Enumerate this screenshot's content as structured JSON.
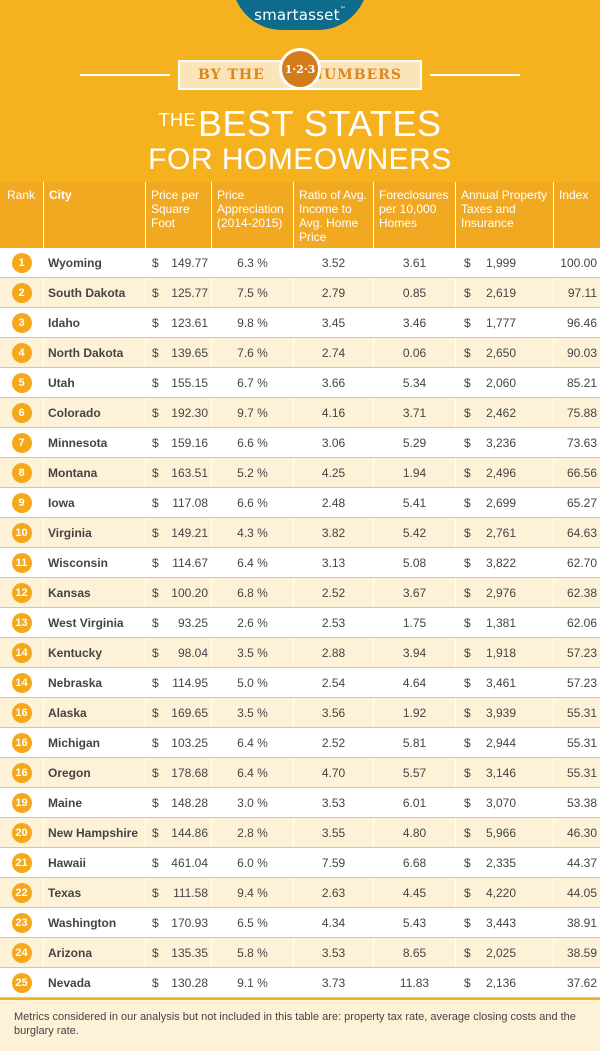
{
  "logo": {
    "name": "smartasset",
    "tm": "™"
  },
  "banner": {
    "left_word": "BY THE",
    "badge": "1·2·3",
    "right_word": "NUMBERS"
  },
  "title": {
    "prefix": "THE",
    "line1": "BEST STATES",
    "line2": "FOR HOMEOWNERS"
  },
  "colors": {
    "background": "#f5b21e",
    "header_cell": "#f2a922",
    "rank_circle": "#f5a81a",
    "logo": "#0f6b8c"
  },
  "table": {
    "headers": [
      "Rank",
      "City",
      "Price per Square Foot",
      "Price Appreciation (2014-2015)",
      "Ratio of Avg. Income to Avg. Home Price",
      "Foreclosures per 10,000 Homes",
      "Annual Property Taxes and Insurance",
      "Index"
    ],
    "rows": [
      {
        "rank": "1",
        "city": "Wyoming",
        "price": "149.77",
        "appreciation": "6.3 %",
        "ratio": "3.52",
        "foreclosures": "3.61",
        "tax": "1,999",
        "index": "100.00"
      },
      {
        "rank": "2",
        "city": "South Dakota",
        "price": "125.77",
        "appreciation": "7.5 %",
        "ratio": "2.79",
        "foreclosures": "0.85",
        "tax": "2,619",
        "index": "97.11"
      },
      {
        "rank": "3",
        "city": "Idaho",
        "price": "123.61",
        "appreciation": "9.8 %",
        "ratio": "3.45",
        "foreclosures": "3.46",
        "tax": "1,777",
        "index": "96.46"
      },
      {
        "rank": "4",
        "city": "North Dakota",
        "price": "139.65",
        "appreciation": "7.6 %",
        "ratio": "2.74",
        "foreclosures": "0.06",
        "tax": "2,650",
        "index": "90.03"
      },
      {
        "rank": "5",
        "city": "Utah",
        "price": "155.15",
        "appreciation": "6.7 %",
        "ratio": "3.66",
        "foreclosures": "5.34",
        "tax": "2,060",
        "index": "85.21"
      },
      {
        "rank": "6",
        "city": "Colorado",
        "price": "192.30",
        "appreciation": "9.7 %",
        "ratio": "4.16",
        "foreclosures": "3.71",
        "tax": "2,462",
        "index": "75.88"
      },
      {
        "rank": "7",
        "city": "Minnesota",
        "price": "159.16",
        "appreciation": "6.6 %",
        "ratio": "3.06",
        "foreclosures": "5.29",
        "tax": "3,236",
        "index": "73.63"
      },
      {
        "rank": "8",
        "city": "Montana",
        "price": "163.51",
        "appreciation": "5.2 %",
        "ratio": "4.25",
        "foreclosures": "1.94",
        "tax": "2,496",
        "index": "66.56"
      },
      {
        "rank": "9",
        "city": "Iowa",
        "price": "117.08",
        "appreciation": "6.6 %",
        "ratio": "2.48",
        "foreclosures": "5.41",
        "tax": "2,699",
        "index": "65.27"
      },
      {
        "rank": "10",
        "city": "Virginia",
        "price": "149.21",
        "appreciation": "4.3 %",
        "ratio": "3.82",
        "foreclosures": "5.42",
        "tax": "2,761",
        "index": "64.63"
      },
      {
        "rank": "11",
        "city": "Wisconsin",
        "price": "114.67",
        "appreciation": "6.4 %",
        "ratio": "3.13",
        "foreclosures": "5.08",
        "tax": "3,822",
        "index": "62.70"
      },
      {
        "rank": "12",
        "city": "Kansas",
        "price": "100.20",
        "appreciation": "6.8 %",
        "ratio": "2.52",
        "foreclosures": "3.67",
        "tax": "2,976",
        "index": "62.38"
      },
      {
        "rank": "13",
        "city": "West Virginia",
        "price": "93.25",
        "appreciation": "2.6 %",
        "ratio": "2.53",
        "foreclosures": "1.75",
        "tax": "1,381",
        "index": "62.06"
      },
      {
        "rank": "14",
        "city": "Kentucky",
        "price": "98.04",
        "appreciation": "3.5 %",
        "ratio": "2.88",
        "foreclosures": "3.94",
        "tax": "1,918",
        "index": "57.23"
      },
      {
        "rank": "14",
        "city": "Nebraska",
        "price": "114.95",
        "appreciation": "5.0 %",
        "ratio": "2.54",
        "foreclosures": "4.64",
        "tax": "3,461",
        "index": "57.23"
      },
      {
        "rank": "16",
        "city": "Alaska",
        "price": "169.65",
        "appreciation": "3.5 %",
        "ratio": "3.56",
        "foreclosures": "1.92",
        "tax": "3,939",
        "index": "55.31"
      },
      {
        "rank": "16",
        "city": "Michigan",
        "price": "103.25",
        "appreciation": "6.4 %",
        "ratio": "2.52",
        "foreclosures": "5.81",
        "tax": "2,944",
        "index": "55.31"
      },
      {
        "rank": "16",
        "city": "Oregon",
        "price": "178.68",
        "appreciation": "6.4 %",
        "ratio": "4.70",
        "foreclosures": "5.57",
        "tax": "3,146",
        "index": "55.31"
      },
      {
        "rank": "19",
        "city": "Maine",
        "price": "148.28",
        "appreciation": "3.0 %",
        "ratio": "3.53",
        "foreclosures": "6.01",
        "tax": "3,070",
        "index": "53.38"
      },
      {
        "rank": "20",
        "city": "New Hampshire",
        "price": "144.86",
        "appreciation": "2.8 %",
        "ratio": "3.55",
        "foreclosures": "4.80",
        "tax": "5,966",
        "index": "46.30"
      },
      {
        "rank": "21",
        "city": "Hawaii",
        "price": "461.04",
        "appreciation": "6.0 %",
        "ratio": "7.59",
        "foreclosures": "6.68",
        "tax": "2,335",
        "index": "44.37"
      },
      {
        "rank": "22",
        "city": "Texas",
        "price": "111.58",
        "appreciation": "9.4 %",
        "ratio": "2.63",
        "foreclosures": "4.45",
        "tax": "4,220",
        "index": "44.05"
      },
      {
        "rank": "23",
        "city": "Washington",
        "price": "170.93",
        "appreciation": "6.5 %",
        "ratio": "4.34",
        "foreclosures": "5.43",
        "tax": "3,443",
        "index": "38.91"
      },
      {
        "rank": "24",
        "city": "Arizona",
        "price": "135.35",
        "appreciation": "5.8 %",
        "ratio": "3.53",
        "foreclosures": "8.65",
        "tax": "2,025",
        "index": "38.59"
      },
      {
        "rank": "25",
        "city": "Nevada",
        "price": "130.28",
        "appreciation": "9.1 %",
        "ratio": "3.73",
        "foreclosures": "11.83",
        "tax": "2,136",
        "index": "37.62"
      }
    ]
  },
  "footnote": "Metrics considered in our analysis but not included in this table are: property tax rate, average closing costs and the burglary rate."
}
